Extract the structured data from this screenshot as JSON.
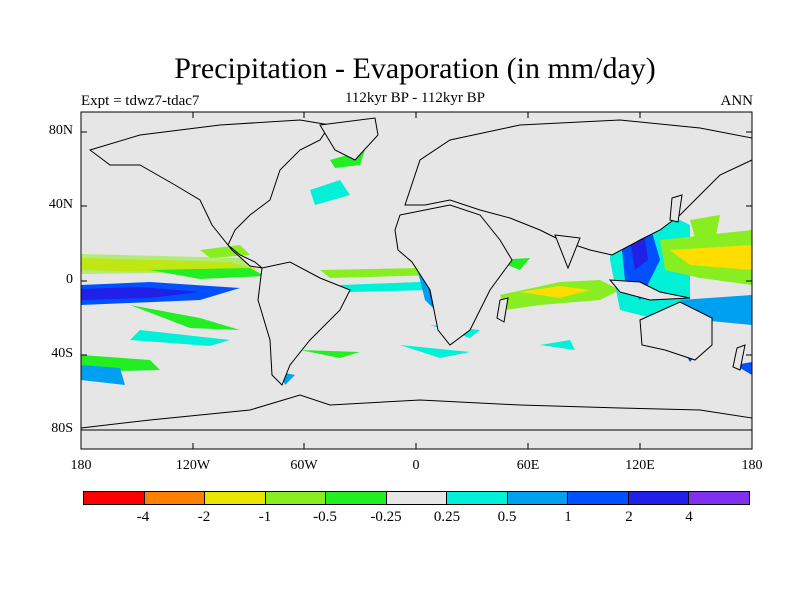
{
  "title": "Precipitation - Evaporation (in mm/day)",
  "subtitle": "112kyr BP - 112kyr BP",
  "left_string": "Expt = tdwz7-tdac7",
  "right_string": "ANN",
  "lat_labels": [
    "80N",
    "40N",
    "0",
    "40S",
    "80S"
  ],
  "lon_labels": [
    "180",
    "120W",
    "60W",
    "0",
    "60E",
    "120E",
    "180"
  ],
  "legend": {
    "labels": [
      "-4",
      "-2",
      "-1",
      "-0.5",
      "-0.25",
      "0.25",
      "0.5",
      "1",
      "2",
      "4"
    ],
    "colors": [
      "#ff0000",
      "#ff8000",
      "#e6e600",
      "#88ee22",
      "#22ee22",
      "#e6e6e6",
      "#00f0d8",
      "#00a0f0",
      "#0050ff",
      "#2020e6",
      "#8030f0"
    ]
  },
  "colors": {
    "ocean_background": "#e6e6e6",
    "coastline": "#000000"
  }
}
